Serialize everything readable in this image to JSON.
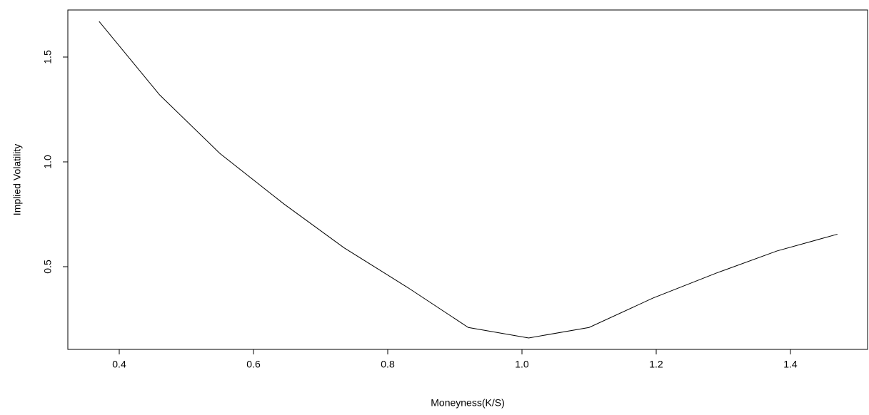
{
  "chart_data": {
    "type": "line",
    "xlabel": "Moneyness(K/S)",
    "ylabel": "Implied Volatility",
    "x": [
      0.37,
      0.46,
      0.55,
      0.645,
      0.735,
      0.83,
      0.92,
      1.01,
      1.1,
      1.195,
      1.29,
      1.38,
      1.47
    ],
    "series": [
      {
        "color": "#000000",
        "values": [
          1.67,
          1.32,
          1.04,
          0.8,
          0.59,
          0.4,
          0.21,
          0.16,
          0.21,
          0.35,
          0.47,
          0.575,
          0.655
        ]
      }
    ],
    "xlim": [
      0.3234,
      1.5149
    ],
    "ylim": [
      0.1054,
      1.7245
    ],
    "xticks": [
      0.4,
      0.6,
      0.8,
      {
        "value": 1,
        "label": "1.0"
      },
      1.2,
      1.4
    ],
    "yticks": [
      0.5,
      {
        "value": 1,
        "label": "1.0"
      },
      1.5
    ],
    "grid": false
  }
}
